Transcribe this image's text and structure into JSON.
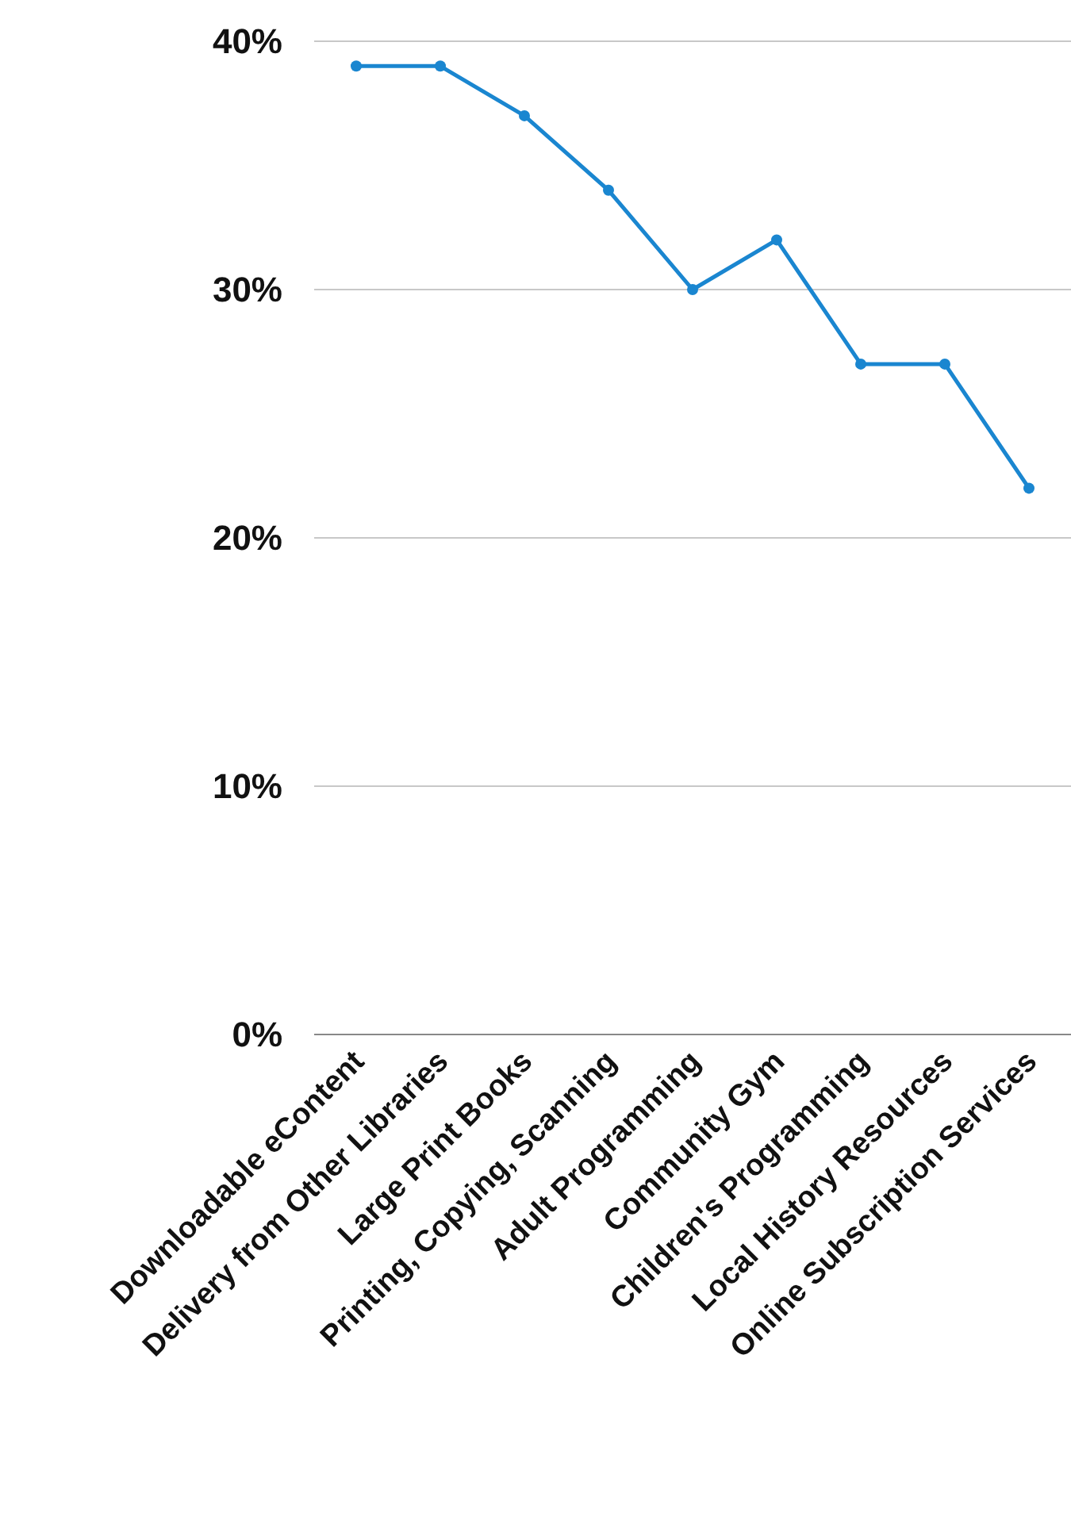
{
  "chart_data": {
    "type": "line",
    "categories": [
      "Downloadable eContent",
      "Delivery from Other Libraries",
      "Large Print Books",
      "Printing, Copying, Scanning",
      "Adult Programming",
      "Community Gym",
      "Children's Programming",
      "Local History Resources",
      "Online Subscription Services"
    ],
    "series": [
      {
        "color": "#1a86d0",
        "values": [
          39,
          39,
          37,
          34,
          30,
          32,
          27,
          27,
          22
        ]
      }
    ],
    "ylim": [
      0,
      40
    ],
    "yticks": [
      {
        "value": 0,
        "label": "0%"
      },
      {
        "value": 10,
        "label": "10%"
      },
      {
        "value": 20,
        "label": "20%"
      },
      {
        "value": 30,
        "label": "30%"
      },
      {
        "value": 40,
        "label": "40%"
      }
    ],
    "grid": "y",
    "marker": "circle",
    "line_style": "solid"
  }
}
